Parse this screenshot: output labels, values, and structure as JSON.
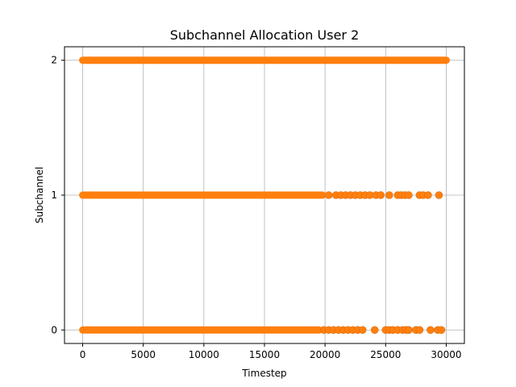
{
  "chart_data": {
    "type": "scatter",
    "title": "Subchannel Allocation User 2",
    "xlabel": "Timestep",
    "ylabel": "Subchannel",
    "xlim": [
      -1500,
      31500
    ],
    "ylim": [
      -0.1,
      2.1
    ],
    "xticks": [
      0,
      5000,
      10000,
      15000,
      20000,
      25000,
      30000
    ],
    "xtick_labels": [
      "0",
      "5000",
      "10000",
      "15000",
      "20000",
      "25000",
      "30000"
    ],
    "yticks": [
      0,
      1,
      2
    ],
    "ytick_labels": [
      "0",
      "1",
      "2"
    ],
    "grid": true,
    "marker_color": "#ff7f0e",
    "marker_edge_color": "#d96e10",
    "series": [
      {
        "y": 2,
        "segments": [
          [
            0,
            30000
          ]
        ],
        "points": []
      },
      {
        "y": 1,
        "segments": [
          [
            0,
            19800
          ]
        ],
        "points": [
          20300,
          20900,
          21300,
          21700,
          22100,
          22500,
          22900,
          23300,
          23700,
          24200,
          24600,
          25300,
          26000,
          26300,
          26600,
          26900,
          27800,
          28100,
          28500,
          29400
        ]
      },
      {
        "y": 0,
        "segments": [
          [
            0,
            19500
          ]
        ],
        "points": [
          19900,
          20300,
          20700,
          21100,
          21500,
          21900,
          22300,
          22700,
          23100,
          24100,
          25000,
          25300,
          25600,
          26000,
          26400,
          26700,
          26900,
          27500,
          27800,
          28700,
          29300,
          29600
        ]
      }
    ]
  }
}
